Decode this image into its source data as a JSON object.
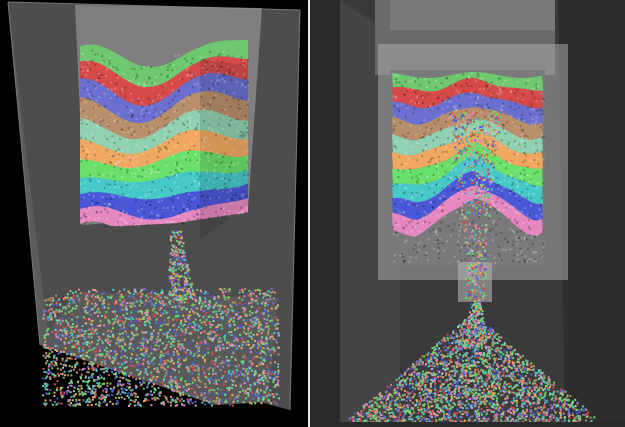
{
  "figure": {
    "panels": [
      "left-oblique-view",
      "right-front-view"
    ]
  },
  "layer_colors": [
    "#6fc86f",
    "#d64a4a",
    "#6a6fd0",
    "#b88f6a",
    "#8fd1b0",
    "#f0a860",
    "#6ae06a",
    "#46c8c8",
    "#4a58d8",
    "#e688c0"
  ],
  "background": {
    "outer": "#000000",
    "box_wall": "#5a5a5a",
    "hopper_shade": "#a8a8a8"
  }
}
